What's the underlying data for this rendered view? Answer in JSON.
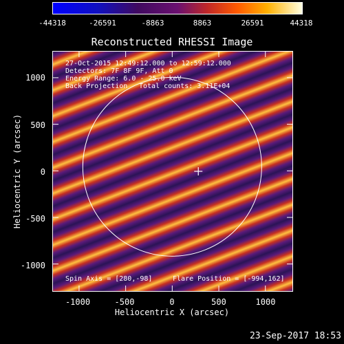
{
  "colorbar": {
    "labels": [
      "-44318",
      "-26591",
      "-8863",
      "8863",
      "26591",
      "44318"
    ]
  },
  "title": "Reconstructed RHESSI Image",
  "info": {
    "line1": "27-Oct-2015 12:49:12.000 to 12:59:12.000",
    "line2": "Detectors: 7F 8F 9F, Att 0",
    "line3": "Energy Range: 6.0 - 25.0 keV",
    "line4_method": "Back Projection",
    "line4_counts": "Total counts: 3.11E+04",
    "spin_axis": "Spin Axis = [280,-98]",
    "flare_position": "Flare Position = [-994,162]"
  },
  "axes": {
    "xlabel": "Heliocentric X (arcsec)",
    "ylabel": "Heliocentric Y (arcsec)",
    "xticks": [
      "-1000",
      "-500",
      "0",
      "500",
      "1000"
    ],
    "yticks": [
      "1000",
      "500",
      "0",
      "-500",
      "-1000"
    ],
    "xtick_values": [
      -1000,
      -500,
      0,
      500,
      1000
    ],
    "ytick_values": [
      1000,
      500,
      0,
      -500,
      -1000
    ],
    "xlim": [
      -1280,
      1290
    ],
    "ylim": [
      -1290,
      1280
    ]
  },
  "timestamp": "23-Sep-2017 18:53",
  "colors": {
    "background": "#000000",
    "stripe_dark": "#3a1a6e",
    "stripe_mid": "#c0281e",
    "stripe_bright": "#ffd040"
  }
}
